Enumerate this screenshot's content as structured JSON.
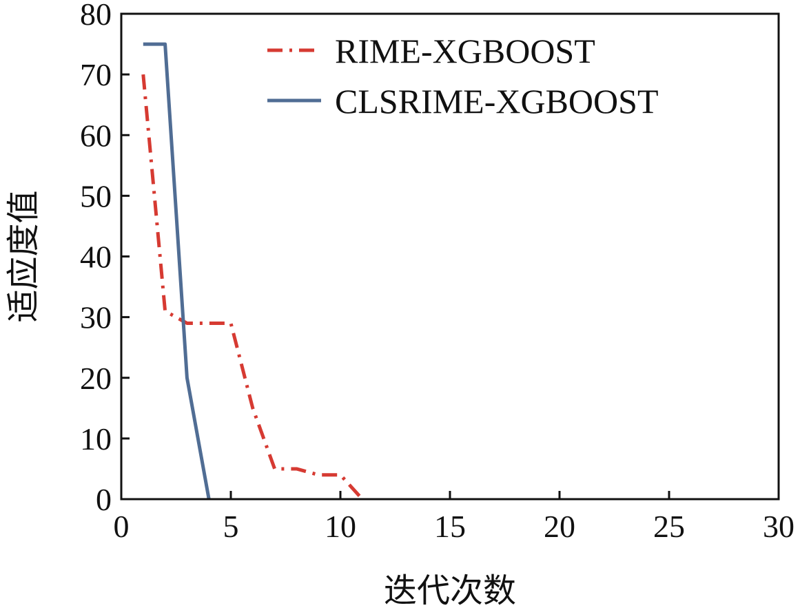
{
  "chart_data": {
    "type": "line",
    "title": "",
    "xlabel": "迭代次数",
    "ylabel": "适应度值",
    "xlim": [
      0,
      30
    ],
    "ylim": [
      0,
      80
    ],
    "xticks": [
      0,
      5,
      10,
      15,
      20,
      25,
      30
    ],
    "yticks": [
      0,
      10,
      20,
      30,
      40,
      50,
      60,
      70,
      80
    ],
    "grid": false,
    "legend_position": "top-right",
    "series": [
      {
        "name": "RIME-XGBOOST",
        "color": "#d63a32",
        "style": "dash-dot",
        "points": [
          [
            1,
            70
          ],
          [
            2,
            31
          ],
          [
            3,
            29
          ],
          [
            4,
            29
          ],
          [
            5,
            29
          ],
          [
            6,
            15
          ],
          [
            7,
            5
          ],
          [
            8,
            5
          ],
          [
            9,
            4
          ],
          [
            10,
            4
          ],
          [
            11,
            0
          ]
        ]
      },
      {
        "name": "CLSRIME-XGBOOST",
        "color": "#506d94",
        "style": "solid",
        "points": [
          [
            1,
            75
          ],
          [
            2,
            75
          ],
          [
            3,
            20
          ],
          [
            4,
            0
          ]
        ]
      }
    ]
  }
}
